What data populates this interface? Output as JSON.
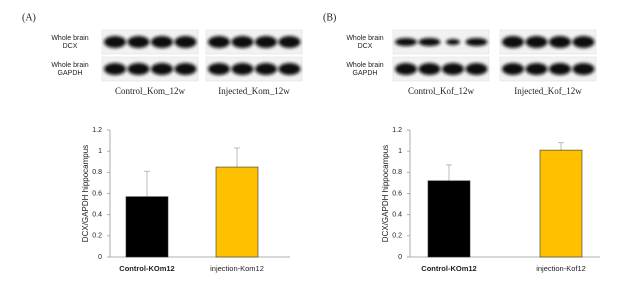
{
  "blots": [
    {
      "panel": "(A)",
      "rows": [
        "Whole brain\nDCX",
        "Whole brain\nGAPDH"
      ],
      "groups": [
        "Control_Kom_12w",
        "Injected_Kom_12w"
      ]
    },
    {
      "panel": "(B)",
      "rows": [
        "Whole brain\nDCX",
        "Whole brain\nGAPDH"
      ],
      "groups": [
        "Control_Kof_12w",
        "Injected_Kof_12w"
      ]
    }
  ],
  "chart_data": [
    {
      "type": "bar",
      "ylabel": "DCX/GAPDH hippocampus",
      "categories": [
        "Control-KOm12",
        "injection-Kom12"
      ],
      "values": [
        0.57,
        0.85
      ],
      "errors": [
        0.24,
        0.18
      ],
      "colors": [
        "#000000",
        "#ffc000"
      ],
      "ylim": [
        0,
        1.2
      ],
      "yticks": [
        0,
        0.2,
        0.4,
        0.6,
        0.8,
        1,
        1.2
      ]
    },
    {
      "type": "bar",
      "ylabel": "DCX/GAPDH hippocampus",
      "categories": [
        "Control-KOm12",
        "injection-Kof12"
      ],
      "values": [
        0.72,
        1.01
      ],
      "errors": [
        0.15,
        0.07
      ],
      "colors": [
        "#000000",
        "#ffc000"
      ],
      "ylim": [
        0,
        1.2
      ],
      "yticks": [
        0,
        0.2,
        0.4,
        0.6,
        0.8,
        1,
        1.2
      ]
    }
  ]
}
